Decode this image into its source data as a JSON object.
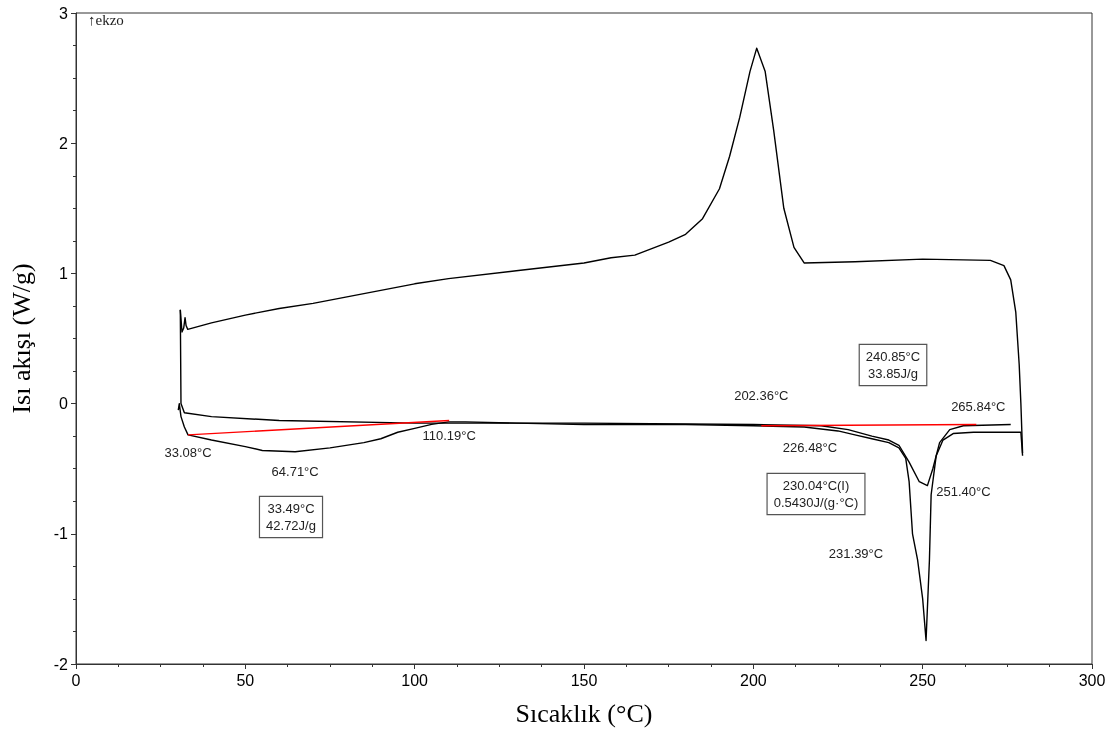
{
  "chart_data": {
    "type": "line",
    "xlabel": "Sıcaklık (°C)",
    "ylabel": "Isı akışı (W/g)",
    "xlim": [
      0,
      300
    ],
    "xticks": [
      0,
      50,
      100,
      150,
      200,
      250,
      300
    ],
    "ylim": [
      -2,
      3
    ],
    "yticks": [
      -2,
      -1,
      0,
      1,
      2,
      3
    ],
    "series": [
      {
        "color": "#000000",
        "x": [
          30.2,
          30.5,
          31,
          32,
          33.08,
          40,
          50,
          55,
          64.71,
          75,
          85,
          90,
          95,
          100,
          105,
          110,
          115,
          130,
          150,
          180,
          200,
          215,
          225,
          230,
          235,
          240,
          243,
          245,
          246,
          247,
          248.5,
          250,
          251,
          252,
          252.5,
          254,
          256,
          259,
          265,
          279,
          279.5
        ],
        "values": [
          -0.05,
          0.0,
          -0.1,
          -0.18,
          -0.24,
          -0.28,
          -0.33,
          -0.36,
          -0.37,
          -0.34,
          -0.3,
          -0.27,
          -0.22,
          -0.19,
          -0.16,
          -0.14,
          -0.14,
          -0.15,
          -0.16,
          -0.16,
          -0.17,
          -0.18,
          -0.21,
          -0.24,
          -0.27,
          -0.3,
          -0.34,
          -0.42,
          -0.6,
          -1.0,
          -1.2,
          -1.5,
          -1.82,
          -1.2,
          -0.7,
          -0.4,
          -0.28,
          -0.23,
          -0.22,
          -0.22,
          -0.4
        ]
      },
      {
        "color": "#000000",
        "x": [
          279.5,
          279,
          278.5,
          277.5,
          276,
          274,
          270,
          250,
          230,
          215,
          212,
          209,
          206,
          203.5,
          201,
          199,
          196,
          193,
          190,
          185,
          180,
          175,
          165,
          158,
          150,
          130,
          110,
          100,
          80,
          70,
          60,
          50,
          40,
          33,
          32.5,
          32.2,
          31.8,
          31.3,
          30.8
        ],
        "values": [
          -0.38,
          0.0,
          0.3,
          0.7,
          0.95,
          1.06,
          1.1,
          1.11,
          1.09,
          1.08,
          1.2,
          1.5,
          2.1,
          2.55,
          2.73,
          2.55,
          2.2,
          1.9,
          1.65,
          1.42,
          1.3,
          1.24,
          1.14,
          1.12,
          1.08,
          1.02,
          0.96,
          0.92,
          0.82,
          0.77,
          0.73,
          0.68,
          0.62,
          0.57,
          0.6,
          0.66,
          0.58,
          0.55,
          0.72
        ]
      },
      {
        "color": "#000000",
        "x": [
          30.8,
          31,
          32,
          40,
          60,
          100,
          150,
          200,
          220,
          228,
          235,
          240,
          243,
          246,
          249,
          251.4,
          253,
          255,
          258,
          262,
          276
        ],
        "values": [
          0.72,
          0.0,
          -0.07,
          -0.1,
          -0.13,
          -0.15,
          -0.15,
          -0.16,
          -0.17,
          -0.2,
          -0.25,
          -0.28,
          -0.32,
          -0.45,
          -0.6,
          -0.63,
          -0.5,
          -0.3,
          -0.2,
          -0.17,
          -0.16
        ]
      },
      {
        "color": "#ff0000",
        "x": [
          33.08,
          110.19
        ],
        "values": [
          -0.24,
          -0.13
        ]
      },
      {
        "color": "#ff0000",
        "x": [
          202.36,
          265.84
        ],
        "values": [
          -0.17,
          -0.16
        ]
      }
    ],
    "annotations": [
      "↑ekzo",
      {
        "text": "33.08°C",
        "x": 33.08,
        "y": -0.24
      },
      {
        "text": "64.71°C",
        "x": 64.71,
        "y": -0.37
      },
      {
        "text": "110.19°C",
        "x": 110.19,
        "y": -0.13
      },
      "33.49°C\n42.72J/g",
      {
        "text": "202.36°C",
        "x": 202.36,
        "y": -0.17
      },
      "240.85°C\n33.85J/g",
      {
        "text": "226.48°C",
        "x": 226.48,
        "y": -0.17
      },
      {
        "text": "265.84°C",
        "x": 265.84,
        "y": -0.16
      },
      "230.04°C(I)\n0.5430J/(g·°C)",
      {
        "text": "251.40°C",
        "x": 251.4,
        "y": -0.63
      },
      "231.39°C"
    ]
  }
}
